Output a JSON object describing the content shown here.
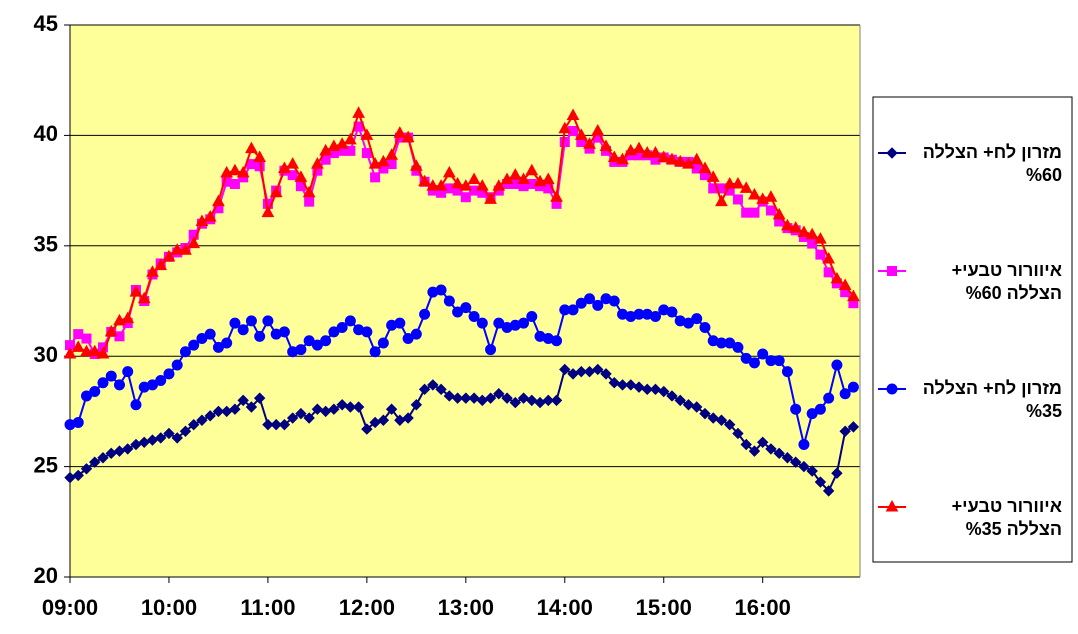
{
  "chart_data": {
    "type": "line",
    "x": [
      540,
      545,
      550,
      555,
      560,
      565,
      570,
      575,
      580,
      585,
      590,
      595,
      600,
      605,
      610,
      615,
      620,
      625,
      630,
      635,
      640,
      645,
      650,
      655,
      660,
      665,
      670,
      675,
      680,
      685,
      690,
      695,
      700,
      705,
      710,
      715,
      720,
      725,
      730,
      735,
      740,
      745,
      750,
      755,
      760,
      765,
      770,
      775,
      780,
      785,
      790,
      795,
      800,
      805,
      810,
      815,
      820,
      825,
      830,
      835,
      840,
      845,
      850,
      855,
      860,
      865,
      870,
      875,
      880,
      885,
      890,
      895,
      900,
      905,
      910,
      915,
      920,
      925,
      930,
      935,
      940,
      945,
      950,
      955,
      960,
      965,
      970,
      975,
      980,
      985,
      990,
      995,
      1000,
      1005,
      1010,
      1015
    ],
    "xlim": [
      540,
      1019
    ],
    "xticks": [
      {
        "value": 540,
        "label": "09:00"
      },
      {
        "value": 600,
        "label": "10:00"
      },
      {
        "value": 660,
        "label": "11:00"
      },
      {
        "value": 720,
        "label": "12:00"
      },
      {
        "value": 780,
        "label": "13:00"
      },
      {
        "value": 840,
        "label": "14:00"
      },
      {
        "value": 900,
        "label": "15:00"
      },
      {
        "value": 960,
        "label": "16:00"
      }
    ],
    "ylim": [
      20,
      45
    ],
    "yticks": [
      20,
      25,
      30,
      35,
      40,
      45
    ],
    "grid": true,
    "legend": "right",
    "series": [
      {
        "name": "מזרון לח+ הצללה %60",
        "color": "#000080",
        "marker": "diamond",
        "values": [
          24.5,
          24.6,
          24.9,
          25.2,
          25.4,
          25.6,
          25.7,
          25.8,
          26.0,
          26.1,
          26.2,
          26.3,
          26.5,
          26.3,
          26.6,
          26.9,
          27.1,
          27.3,
          27.5,
          27.5,
          27.6,
          28.0,
          27.7,
          28.1,
          26.9,
          26.9,
          26.9,
          27.2,
          27.4,
          27.2,
          27.6,
          27.5,
          27.6,
          27.8,
          27.7,
          27.7,
          26.7,
          27.0,
          27.1,
          27.6,
          27.1,
          27.2,
          27.8,
          28.5,
          28.7,
          28.5,
          28.2,
          28.1,
          28.1,
          28.1,
          28.0,
          28.1,
          28.3,
          28.1,
          27.9,
          28.1,
          28.0,
          27.9,
          28.0,
          28.0,
          29.4,
          29.2,
          29.3,
          29.3,
          29.4,
          29.2,
          28.8,
          28.7,
          28.7,
          28.6,
          28.5,
          28.5,
          28.4,
          28.2,
          28.0,
          27.8,
          27.7,
          27.4,
          27.2,
          27.1,
          26.9,
          26.5,
          26.0,
          25.7,
          26.1,
          25.8,
          25.6,
          25.4,
          25.2,
          25.0,
          24.8,
          24.3,
          23.9,
          24.7,
          26.6,
          26.8
        ]
      },
      {
        "name": "איוורור טבעי+ הצללה %60",
        "color": "#ff00ff",
        "marker": "square",
        "values": [
          30.5,
          31.0,
          30.8,
          30.1,
          30.4,
          31.1,
          30.9,
          31.5,
          33.0,
          32.5,
          33.7,
          34.2,
          34.5,
          34.7,
          34.9,
          35.5,
          36.0,
          36.2,
          36.7,
          37.9,
          37.8,
          38.1,
          38.7,
          38.6,
          36.9,
          37.5,
          38.4,
          38.2,
          37.7,
          37.0,
          38.4,
          38.9,
          39.2,
          39.3,
          39.3,
          40.4,
          39.2,
          38.1,
          38.5,
          38.7,
          39.9,
          39.9,
          38.4,
          37.9,
          37.5,
          37.4,
          37.6,
          37.5,
          37.2,
          37.5,
          37.4,
          37.2,
          37.5,
          37.8,
          37.8,
          37.7,
          37.8,
          37.7,
          37.6,
          36.9,
          39.7,
          40.2,
          39.7,
          39.4,
          39.9,
          39.3,
          38.8,
          38.8,
          39.1,
          39.1,
          39.1,
          38.9,
          39.0,
          38.9,
          38.8,
          38.8,
          38.5,
          38.2,
          37.6,
          37.6,
          37.5,
          37.1,
          36.5,
          36.5,
          37.0,
          36.6,
          36.1,
          35.8,
          35.7,
          35.4,
          35.1,
          34.6,
          33.8,
          33.3,
          32.9,
          32.4
        ]
      },
      {
        "name": "מזרון לח+ הצללה %35",
        "color": "#0000ff",
        "marker": "circle",
        "values": [
          26.9,
          27.0,
          28.2,
          28.4,
          28.8,
          29.1,
          28.7,
          29.3,
          27.8,
          28.6,
          28.7,
          28.9,
          29.2,
          29.6,
          30.2,
          30.5,
          30.8,
          31.0,
          30.4,
          30.6,
          31.5,
          31.2,
          31.6,
          30.9,
          31.6,
          31.0,
          31.1,
          30.2,
          30.3,
          30.7,
          30.5,
          30.7,
          31.1,
          31.3,
          31.6,
          31.2,
          31.1,
          30.2,
          30.6,
          31.4,
          31.5,
          30.8,
          31.0,
          31.9,
          32.9,
          33.0,
          32.5,
          32.0,
          32.2,
          31.8,
          31.5,
          30.3,
          31.5,
          31.3,
          31.4,
          31.5,
          31.8,
          30.9,
          30.8,
          30.7,
          32.1,
          32.1,
          32.4,
          32.6,
          32.3,
          32.6,
          32.5,
          31.9,
          31.8,
          31.9,
          31.9,
          31.8,
          32.1,
          32.0,
          31.6,
          31.5,
          31.7,
          31.3,
          30.7,
          30.6,
          30.6,
          30.4,
          29.9,
          29.7,
          30.1,
          29.8,
          29.8,
          29.3,
          27.6,
          26.0,
          27.4,
          27.6,
          28.1,
          29.6,
          28.3,
          28.6
        ]
      },
      {
        "name": "איוורור טבעי+ הצללה %35",
        "color": "#ff0000",
        "marker": "triangle",
        "values": [
          30.1,
          30.4,
          30.2,
          30.2,
          30.1,
          31.1,
          31.6,
          31.7,
          32.9,
          32.6,
          33.8,
          34.1,
          34.5,
          34.8,
          34.8,
          35.1,
          36.1,
          36.3,
          37.0,
          38.3,
          38.4,
          38.3,
          39.4,
          39.0,
          36.5,
          37.4,
          38.5,
          38.7,
          38.1,
          37.4,
          38.7,
          39.3,
          39.5,
          39.6,
          39.8,
          41.0,
          40.0,
          38.7,
          38.8,
          39.1,
          40.1,
          39.9,
          38.6,
          37.9,
          37.7,
          37.7,
          38.3,
          37.8,
          37.7,
          38.0,
          37.7,
          37.1,
          37.7,
          38.0,
          38.2,
          38.0,
          38.4,
          37.9,
          38.0,
          37.2,
          40.3,
          40.9,
          40.0,
          39.6,
          40.2,
          39.5,
          39.0,
          38.9,
          39.3,
          39.4,
          39.2,
          39.2,
          39.0,
          38.9,
          38.8,
          38.7,
          38.9,
          38.5,
          38.1,
          37.0,
          37.8,
          37.8,
          37.6,
          37.3,
          37.1,
          37.2,
          36.4,
          35.9,
          35.8,
          35.6,
          35.5,
          35.3,
          34.4,
          33.5,
          33.2,
          32.7
        ]
      }
    ]
  }
}
